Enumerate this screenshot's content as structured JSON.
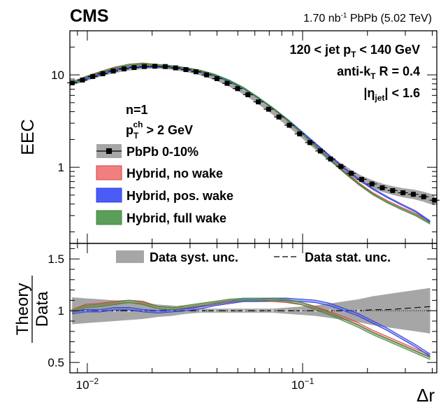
{
  "chart_data": [
    {
      "type": "line",
      "title": "CMS",
      "lumi_label": "1.70 nb-1 PbPb (5.02 TeV)",
      "ylabel": "EEC",
      "xscale": "log",
      "yscale": "log",
      "xlim": [
        0.0083,
        0.42
      ],
      "ylim": [
        0.15,
        30
      ],
      "y_ticks": [
        {
          "value": 1,
          "label": "1"
        },
        {
          "value": 10,
          "label": "10"
        }
      ],
      "annotations": {
        "jet_pt": "120 < jet pT < 140 GeV",
        "algorithm": "anti-kT R = 0.4",
        "eta": "|ηjet| < 1.6",
        "n": "n=1",
        "track_pt": "pTch > 2 GeV"
      },
      "data_series": {
        "name": "PbPb 0-10%",
        "x": [
          0.0085,
          0.0095,
          0.0106,
          0.0118,
          0.0132,
          0.0148,
          0.0165,
          0.0184,
          0.0206,
          0.023,
          0.0257,
          0.0287,
          0.032,
          0.0358,
          0.04,
          0.0446,
          0.0499,
          0.0557,
          0.0622,
          0.0695,
          0.0776,
          0.0867,
          0.0968,
          0.1081,
          0.1208,
          0.1349,
          0.1507,
          0.1683,
          0.188,
          0.21,
          0.2345,
          0.262,
          0.2926,
          0.3268,
          0.365,
          0.41
        ],
        "y": [
          8.2,
          8.8,
          9.6,
          10.3,
          11.0,
          11.6,
          12.0,
          12.3,
          12.4,
          12.3,
          11.9,
          11.4,
          10.8,
          10.0,
          9.1,
          8.1,
          7.1,
          6.1,
          5.1,
          4.25,
          3.5,
          2.85,
          2.3,
          1.85,
          1.5,
          1.23,
          1.02,
          0.86,
          0.74,
          0.66,
          0.6,
          0.56,
          0.53,
          0.51,
          0.48,
          0.44
        ]
      },
      "theory_series": [
        {
          "name": "Hybrid, no wake",
          "color": "#e03c3c",
          "fill": "#f08080",
          "ratio": [
            1.0,
            1.05,
            1.06,
            1.08,
            1.09,
            1.08,
            1.03,
            1.02,
            1.03,
            1.05,
            1.07,
            1.09,
            1.1,
            1.1,
            1.1,
            1.09,
            1.07,
            1.03,
            0.98,
            0.93,
            0.87,
            0.8,
            0.74,
            0.68,
            0.62,
            0.56
          ]
        },
        {
          "name": "Hybrid, pos. wake",
          "color": "#2f3fe0",
          "fill": "#4a5cf5",
          "ratio": [
            0.98,
            1.0,
            1.0,
            1.02,
            1.02,
            1.0,
            0.99,
            1.0,
            1.01,
            1.03,
            1.06,
            1.08,
            1.1,
            1.1,
            1.11,
            1.11,
            1.1,
            1.09,
            1.06,
            1.01,
            0.96,
            0.89,
            0.82,
            0.74,
            0.66,
            0.57
          ]
        },
        {
          "name": "Hybrid, full wake",
          "color": "#3e8a3e",
          "fill": "#5a9e5a",
          "ratio": [
            0.99,
            1.04,
            1.05,
            1.07,
            1.09,
            1.07,
            1.03,
            1.02,
            1.04,
            1.06,
            1.08,
            1.1,
            1.11,
            1.11,
            1.11,
            1.1,
            1.07,
            1.02,
            0.97,
            0.91,
            0.85,
            0.78,
            0.72,
            0.66,
            0.6,
            0.54
          ]
        }
      ],
      "legend": [
        "PbPb 0-10%",
        "Hybrid, no wake",
        "Hybrid, pos. wake",
        "Hybrid, full wake"
      ]
    },
    {
      "type": "line",
      "xlabel": "Δr",
      "ylabel_num": "Theory",
      "ylabel_den": "Data",
      "xscale": "log",
      "xlim": [
        0.0083,
        0.42
      ],
      "ylim": [
        0.4,
        1.65
      ],
      "y_ticks": [
        {
          "value": 0.5,
          "label": "0.5"
        },
        {
          "value": 1,
          "label": "1"
        },
        {
          "value": 1.5,
          "label": "1.5"
        }
      ],
      "x_ticks": [
        {
          "value": 0.01,
          "base": "10",
          "exp": "−2"
        },
        {
          "value": 0.1,
          "base": "10",
          "exp": "−1"
        }
      ],
      "x": [
        0.0085,
        0.0098,
        0.0115,
        0.0134,
        0.0156,
        0.0182,
        0.0212,
        0.0247,
        0.0288,
        0.0336,
        0.0392,
        0.0457,
        0.0533,
        0.0621,
        0.0724,
        0.0844,
        0.0984,
        0.1147,
        0.1337,
        0.1559,
        0.1817,
        0.2118,
        0.2469,
        0.2878,
        0.3355,
        0.391
      ],
      "syst_band_halfwidth": [
        0.13,
        0.12,
        0.11,
        0.1,
        0.09,
        0.08,
        0.06,
        0.05,
        0.03,
        0.02,
        0.02,
        0.02,
        0.02,
        0.02,
        0.02,
        0.03,
        0.04,
        0.05,
        0.07,
        0.09,
        0.11,
        0.14,
        0.16,
        0.18,
        0.2,
        0.22
      ],
      "stat_band": [
        1.0,
        1.0,
        1.0,
        1.0,
        1.0,
        1.0,
        1.0,
        1.0,
        1.0,
        1.0,
        1.0,
        1.0,
        1.0,
        1.0,
        1.0,
        1.0,
        1.0,
        1.0,
        1.0,
        1.0,
        1.0,
        1.01,
        1.01,
        1.02,
        1.03,
        1.04
      ],
      "legend": [
        "Data syst. unc.",
        "Data stat. unc."
      ]
    }
  ]
}
